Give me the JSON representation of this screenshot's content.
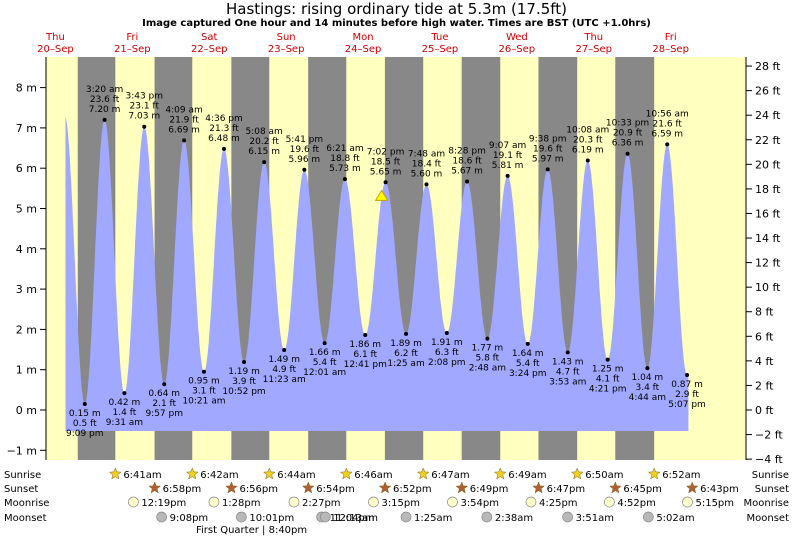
{
  "title": "Hastings: rising  ordinary tide at 5.3m (17.5ft)",
  "subtitle": "Image captured One hour and 14 minutes before high water. Times are BST (UTC +1.0hrs)",
  "chart_data": {
    "type": "area",
    "ylim_m": [
      -1.3,
      8.6
    ],
    "ylim_ft": [
      -4,
      28
    ],
    "y_ticks_m": [
      -1,
      0,
      1,
      2,
      3,
      4,
      5,
      6,
      7,
      8
    ],
    "y_tick_labels_m": [
      "−1 m",
      "0 m",
      "1 m",
      "2 m",
      "3 m",
      "4 m",
      "5 m",
      "6 m",
      "7 m",
      "8 m"
    ],
    "y_ticks_ft": [
      -4,
      -2,
      0,
      2,
      4,
      6,
      8,
      10,
      12,
      14,
      16,
      18,
      20,
      22,
      24,
      26,
      28
    ],
    "y_tick_labels_ft": [
      "−4 ft",
      "−2 ft",
      "0 ft",
      "2 ft",
      "4 ft",
      "6 ft",
      "8 ft",
      "10 ft",
      "12 ft",
      "14 ft",
      "16 ft",
      "18 ft",
      "20 ft",
      "22 ft",
      "24 ft",
      "26 ft",
      "28 ft"
    ],
    "days": [
      {
        "name": "Thu",
        "date": "20–Sep"
      },
      {
        "name": "Fri",
        "date": "21–Sep"
      },
      {
        "name": "Sat",
        "date": "22–Sep"
      },
      {
        "name": "Sun",
        "date": "23–Sep"
      },
      {
        "name": "Mon",
        "date": "24–Sep"
      },
      {
        "name": "Tue",
        "date": "25–Sep"
      },
      {
        "name": "Wed",
        "date": "26–Sep"
      },
      {
        "name": "Thu",
        "date": "27–Sep"
      },
      {
        "name": "Fri",
        "date": "28–Sep"
      }
    ],
    "tides": [
      {
        "type": "low",
        "h": 0.15,
        "t": "9:09 pm",
        "m": "0.15 m",
        "ft": "0.5 ft"
      },
      {
        "type": "high",
        "h": 7.2,
        "t": "3:20 am",
        "m": "7.20 m",
        "ft": "23.6 ft"
      },
      {
        "type": "low",
        "h": 0.42,
        "t": "9:31 am",
        "m": "0.42 m",
        "ft": "1.4 ft"
      },
      {
        "type": "high",
        "h": 7.03,
        "t": "3:43 pm",
        "m": "7.03 m",
        "ft": "23.1 ft"
      },
      {
        "type": "low",
        "h": 0.64,
        "t": "9:57 pm",
        "m": "0.64 m",
        "ft": "2.1 ft"
      },
      {
        "type": "high",
        "h": 6.69,
        "t": "4:09 am",
        "m": "6.69 m",
        "ft": "21.9 ft"
      },
      {
        "type": "low",
        "h": 0.95,
        "t": "10:21 am",
        "m": "0.95 m",
        "ft": "3.1 ft"
      },
      {
        "type": "high",
        "h": 6.48,
        "t": "4:36 pm",
        "m": "6.48 m",
        "ft": "21.3 ft"
      },
      {
        "type": "low",
        "h": 1.19,
        "t": "10:52 pm",
        "m": "1.19 m",
        "ft": "3.9 ft"
      },
      {
        "type": "high",
        "h": 6.15,
        "t": "5:08 am",
        "m": "6.15 m",
        "ft": "20.2 ft"
      },
      {
        "type": "low",
        "h": 1.49,
        "t": "11:23 am",
        "m": "1.49 m",
        "ft": "4.9 ft"
      },
      {
        "type": "high",
        "h": 5.96,
        "t": "5:41 pm",
        "m": "5.96 m",
        "ft": "19.6 ft"
      },
      {
        "type": "low",
        "h": 1.66,
        "t": "12:01 am",
        "m": "1.66 m",
        "ft": "5.4 ft"
      },
      {
        "type": "high",
        "h": 5.73,
        "t": "6:21 am",
        "m": "5.73 m",
        "ft": "18.8 ft"
      },
      {
        "type": "low",
        "h": 1.86,
        "t": "12:41 pm",
        "m": "1.86 m",
        "ft": "6.1 ft"
      },
      {
        "type": "high",
        "h": 5.65,
        "t": "7:02 pm",
        "m": "5.65 m",
        "ft": "18.5 ft"
      },
      {
        "type": "low",
        "h": 1.89,
        "t": "1:25 am",
        "m": "1.89 m",
        "ft": "6.2 ft"
      },
      {
        "type": "high",
        "h": 5.6,
        "t": "7:48 am",
        "m": "5.60 m",
        "ft": "18.4 ft"
      },
      {
        "type": "low",
        "h": 1.91,
        "t": "2:08 pm",
        "m": "1.91 m",
        "ft": "6.3 ft"
      },
      {
        "type": "high",
        "h": 5.67,
        "t": "8:28 pm",
        "m": "5.67 m",
        "ft": "18.6 ft"
      },
      {
        "type": "low",
        "h": 1.77,
        "t": "2:48 am",
        "m": "1.77 m",
        "ft": "5.8 ft"
      },
      {
        "type": "high",
        "h": 5.81,
        "t": "9:07 am",
        "m": "5.81 m",
        "ft": "19.1 ft"
      },
      {
        "type": "low",
        "h": 1.64,
        "t": "3:24 pm",
        "m": "1.64 m",
        "ft": "5.4 ft"
      },
      {
        "type": "high",
        "h": 5.97,
        "t": "9:38 pm",
        "m": "5.97 m",
        "ft": "19.6 ft"
      },
      {
        "type": "low",
        "h": 1.43,
        "t": "3:53 am",
        "m": "1.43 m",
        "ft": "4.7 ft"
      },
      {
        "type": "high",
        "h": 6.19,
        "t": "10:08 am",
        "m": "6.19 m",
        "ft": "20.3 ft"
      },
      {
        "type": "low",
        "h": 1.25,
        "t": "4:21 pm",
        "m": "1.25 m",
        "ft": "4.1 ft"
      },
      {
        "type": "high",
        "h": 6.36,
        "t": "10:33 pm",
        "m": "6.36 m",
        "ft": "20.9 ft"
      },
      {
        "type": "low",
        "h": 1.04,
        "t": "4:44 am",
        "m": "1.04 m",
        "ft": "3.4 ft"
      },
      {
        "type": "high",
        "h": 6.59,
        "t": "10:56 am",
        "m": "6.59 m",
        "ft": "21.6 ft"
      },
      {
        "type": "low",
        "h": 0.87,
        "t": "5:07 pm",
        "m": "0.87 m",
        "ft": "2.9 ft"
      }
    ],
    "current_level_m": 5.3,
    "colors": {
      "day": "#ffffc0",
      "night": "#888888",
      "tide": "#a0a8ff",
      "days_text": "#cc0000"
    }
  },
  "astro": {
    "labels": {
      "sunrise": "Sunrise",
      "sunset": "Sunset",
      "moonrise": "Moonrise",
      "moonset": "Moonset"
    },
    "sunrise": [
      "6:41am",
      "6:42am",
      "6:44am",
      "6:46am",
      "6:47am",
      "6:49am",
      "6:50am",
      "6:52am"
    ],
    "sunset": [
      "6:58pm",
      "6:56pm",
      "6:54pm",
      "6:52pm",
      "6:49pm",
      "6:47pm",
      "6:45pm",
      "6:43pm"
    ],
    "moonrise": [
      "12:19pm",
      "1:28pm",
      "2:27pm",
      "3:15pm",
      "3:54pm",
      "4:25pm",
      "4:52pm",
      "5:15pm"
    ],
    "moonset": [
      "9:08pm",
      "10:01pm",
      "11:04pm",
      "12:13am",
      "1:25am",
      "2:38am",
      "3:51am",
      "5:02am"
    ],
    "moon_phase": "First Quarter | 8:40pm",
    "colors": {
      "sun": "#f0d020",
      "sunset": "#b06030",
      "moonrise": "#ffffcc",
      "moonset": "#b8b8b8"
    }
  }
}
